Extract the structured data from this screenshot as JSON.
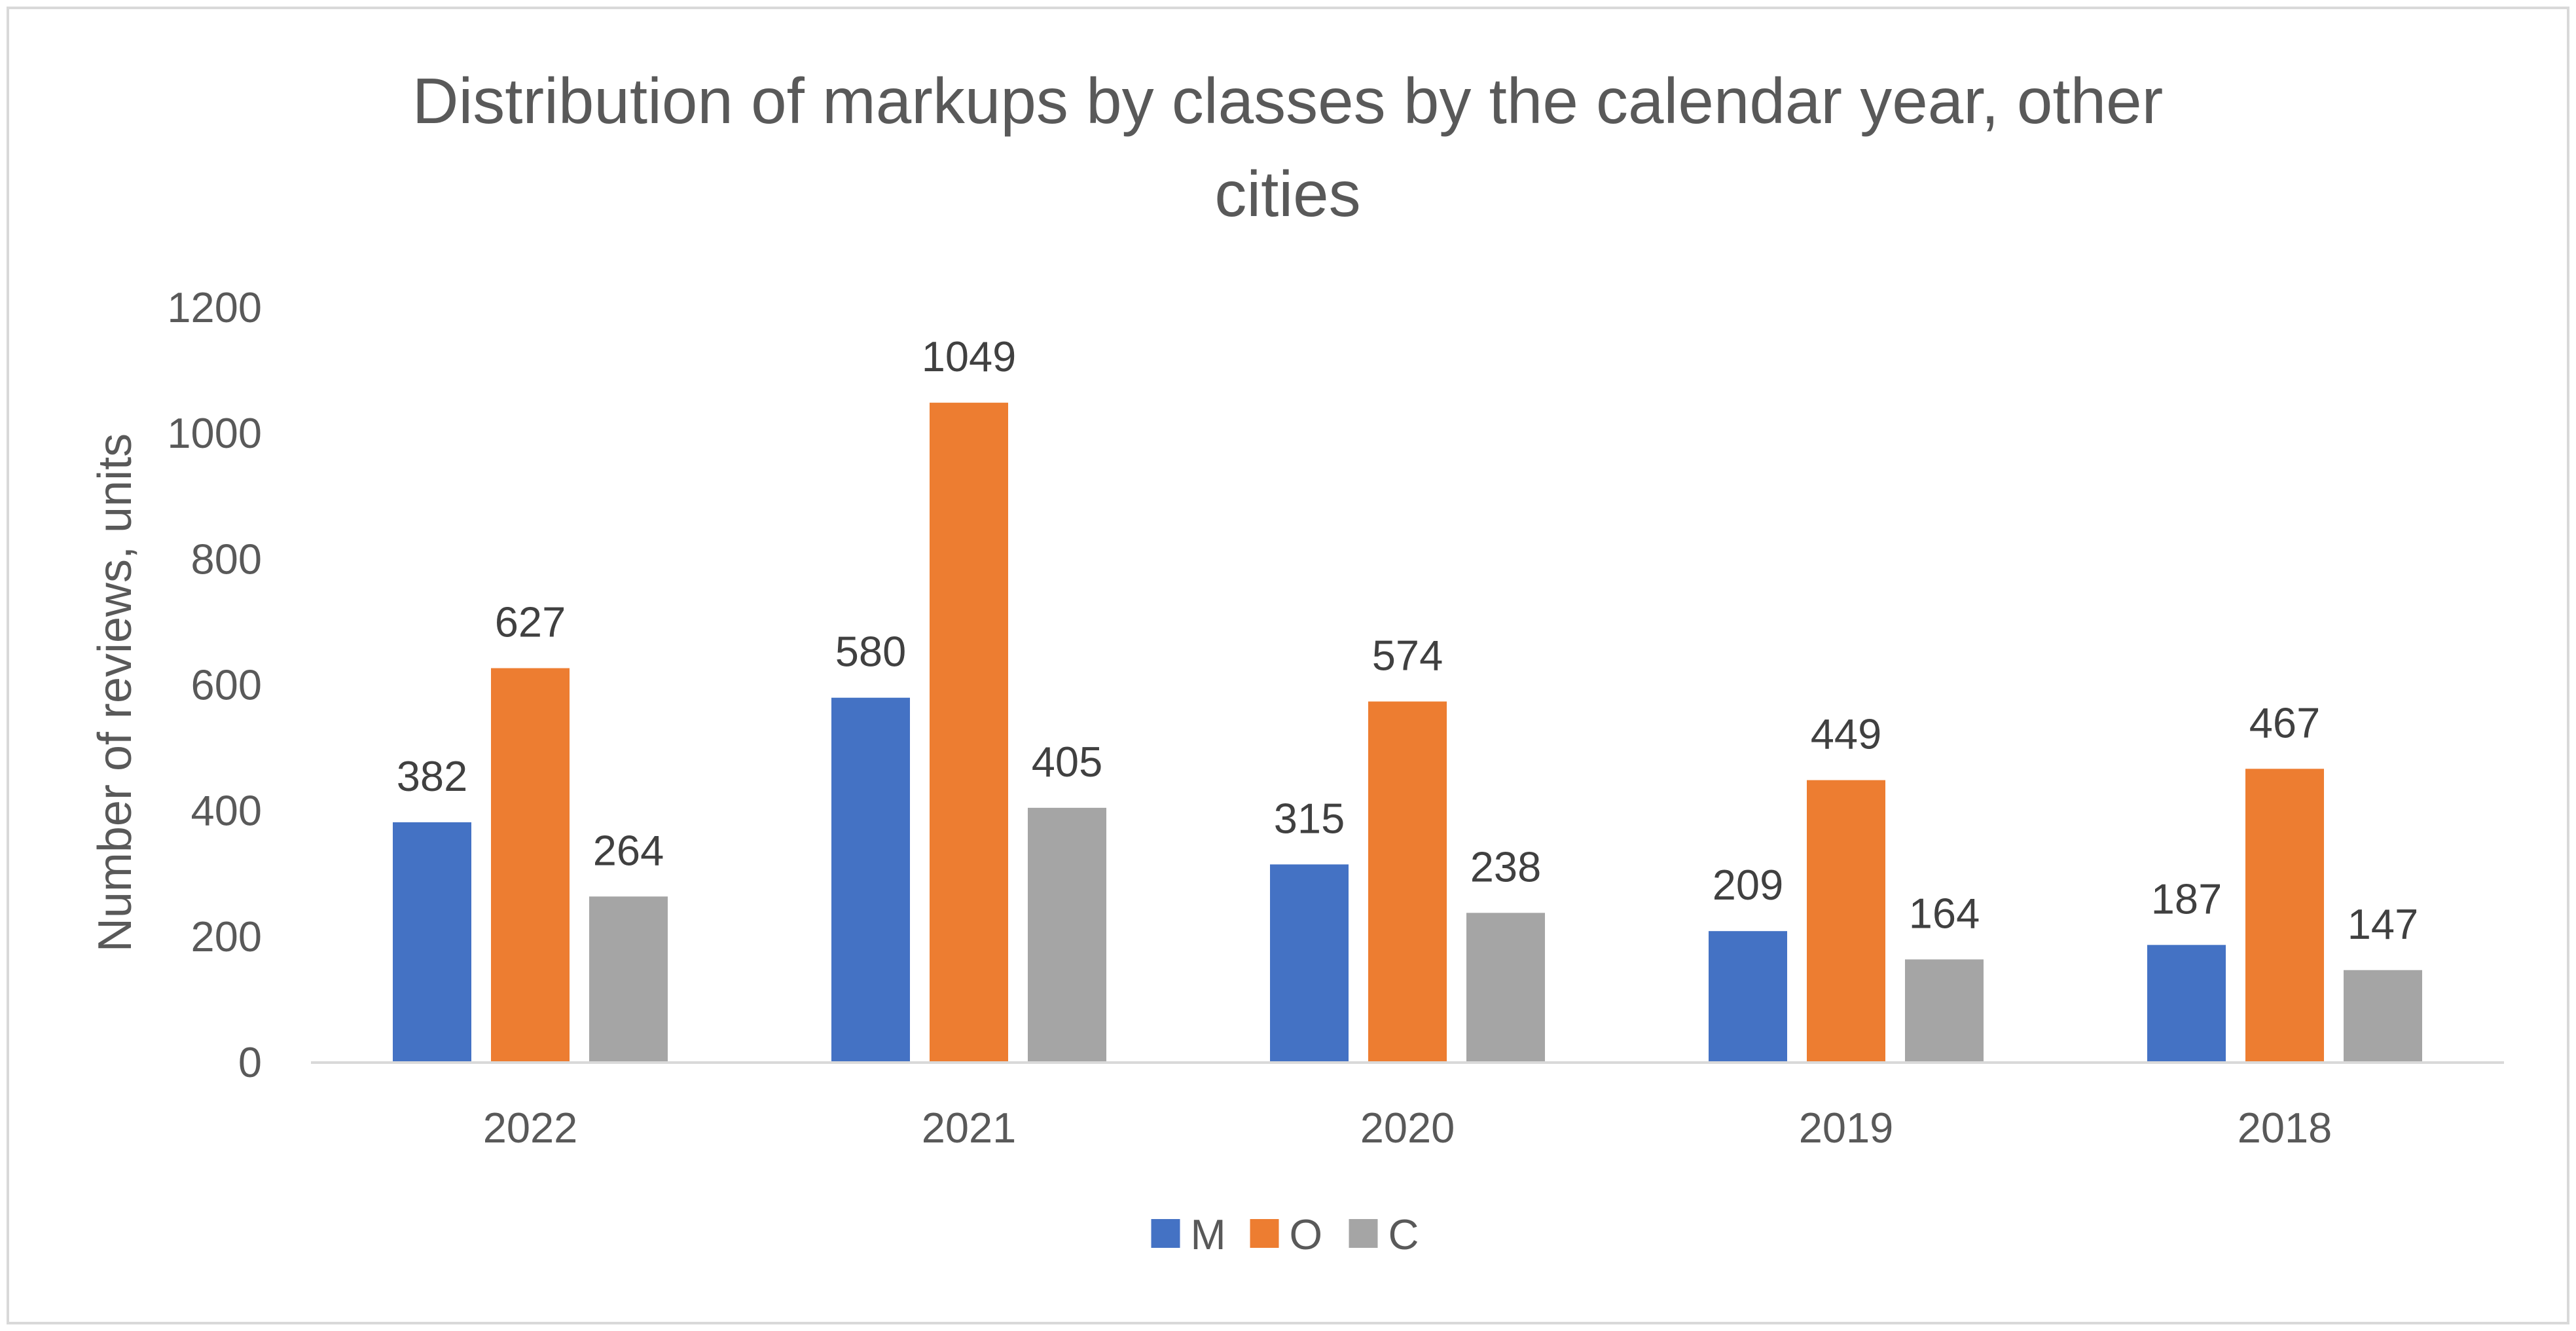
{
  "chart_data": {
    "type": "bar",
    "title_lines": [
      "Distribution of markups by classes by the calendar year, other",
      "cities"
    ],
    "title": "Distribution of markups by classes by the calendar year, other cities",
    "xlabel": "",
    "ylabel": "Number of reviews, units",
    "categories": [
      "2022",
      "2021",
      "2020",
      "2019",
      "2018"
    ],
    "series": [
      {
        "name": "M",
        "color": "#4472C4",
        "values": [
          382,
          580,
          315,
          209,
          187
        ]
      },
      {
        "name": "O",
        "color": "#ED7D31",
        "values": [
          627,
          1049,
          574,
          449,
          467
        ]
      },
      {
        "name": "C",
        "color": "#A5A5A5",
        "values": [
          264,
          405,
          238,
          164,
          147
        ]
      }
    ],
    "ylim": [
      0,
      1200
    ],
    "yticks": [
      0,
      200,
      400,
      600,
      800,
      1000,
      1200
    ],
    "grid": false,
    "data_labels": true,
    "legend_position": "bottom"
  }
}
